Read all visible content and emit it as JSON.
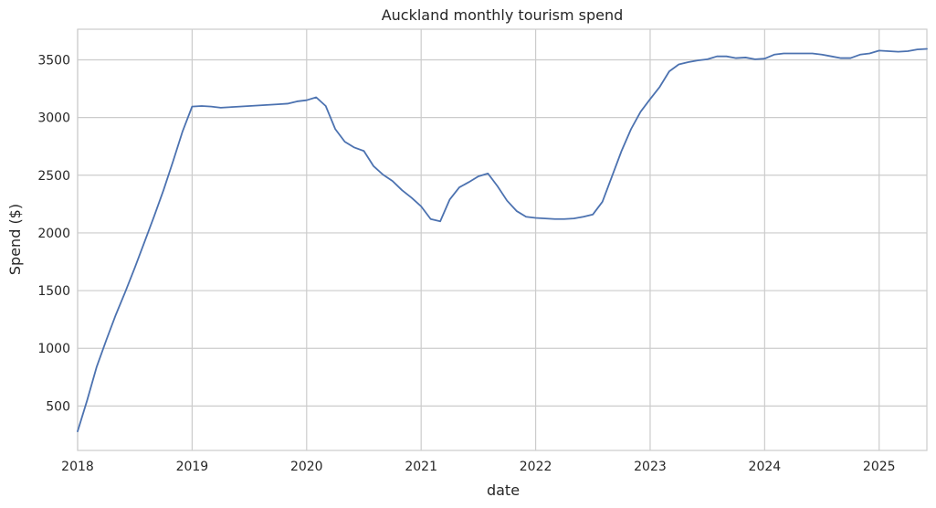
{
  "chart_data": {
    "type": "line",
    "title": "Auckland monthly tourism spend",
    "xlabel": "date",
    "ylabel": "Spend ($)",
    "x_ticks": [
      "2018",
      "2019",
      "2020",
      "2021",
      "2022",
      "2023",
      "2024",
      "2025"
    ],
    "y_ticks": [
      500,
      1000,
      1500,
      2000,
      2500,
      3000,
      3500
    ],
    "xlim": [
      "2018-01",
      "2025-06"
    ],
    "ylim": [
      115,
      3765
    ],
    "grid": true,
    "line_color": "#4c72b0",
    "series": [
      {
        "x": [
          "2018-01",
          "2018-02",
          "2018-03",
          "2018-04",
          "2018-05",
          "2018-06",
          "2018-07",
          "2018-08",
          "2018-09",
          "2018-10",
          "2018-11",
          "2018-12",
          "2019-01",
          "2019-02",
          "2019-03",
          "2019-04",
          "2019-05",
          "2019-06",
          "2019-07",
          "2019-08",
          "2019-09",
          "2019-10",
          "2019-11",
          "2019-12",
          "2020-01",
          "2020-02",
          "2020-03",
          "2020-04",
          "2020-05",
          "2020-06",
          "2020-07",
          "2020-08",
          "2020-09",
          "2020-10",
          "2020-11",
          "2020-12",
          "2021-01",
          "2021-02",
          "2021-03",
          "2021-04",
          "2021-05",
          "2021-06",
          "2021-07",
          "2021-08",
          "2021-09",
          "2021-10",
          "2021-11",
          "2021-12",
          "2022-01",
          "2022-02",
          "2022-03",
          "2022-04",
          "2022-05",
          "2022-06",
          "2022-07",
          "2022-08",
          "2022-09",
          "2022-10",
          "2022-11",
          "2022-12",
          "2023-01",
          "2023-02",
          "2023-03",
          "2023-04",
          "2023-05",
          "2023-06",
          "2023-07",
          "2023-08",
          "2023-09",
          "2023-10",
          "2023-11",
          "2023-12",
          "2024-01",
          "2024-02",
          "2024-03",
          "2024-04",
          "2024-05",
          "2024-06",
          "2024-07",
          "2024-08",
          "2024-09",
          "2024-10",
          "2024-11",
          "2024-12",
          "2025-01",
          "2025-02",
          "2025-03",
          "2025-04",
          "2025-05",
          "2025-06"
        ],
        "values": [
          280,
          550,
          840,
          1070,
          1290,
          1490,
          1700,
          1920,
          2140,
          2370,
          2620,
          2880,
          3095,
          3100,
          3095,
          3085,
          3090,
          3095,
          3100,
          3105,
          3110,
          3115,
          3120,
          3140,
          3150,
          3175,
          3100,
          2900,
          2790,
          2740,
          2710,
          2580,
          2505,
          2450,
          2370,
          2305,
          2230,
          2120,
          2100,
          2290,
          2395,
          2440,
          2490,
          2515,
          2405,
          2280,
          2190,
          2140,
          2130,
          2125,
          2120,
          2120,
          2125,
          2140,
          2160,
          2270,
          2490,
          2710,
          2900,
          3050,
          3160,
          3265,
          3400,
          3460,
          3480,
          3495,
          3505,
          3530,
          3530,
          3515,
          3520,
          3505,
          3510,
          3545,
          3555,
          3555,
          3555,
          3555,
          3545,
          3530,
          3515,
          3515,
          3545,
          3555,
          3580,
          3575,
          3570,
          3575,
          3590,
          3595
        ]
      }
    ]
  }
}
